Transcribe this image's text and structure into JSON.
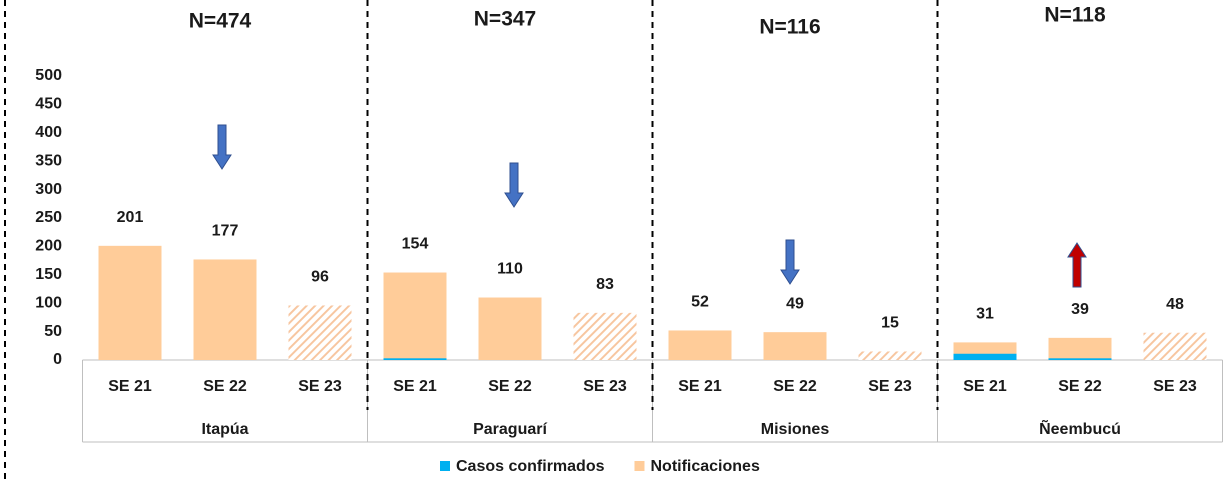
{
  "chart_data": {
    "type": "bar",
    "groups": [
      {
        "name": "Itapúa",
        "n_label": "N=474"
      },
      {
        "name": "Paraguarí",
        "n_label": "N=347"
      },
      {
        "name": "Misiones",
        "n_label": "N=116"
      },
      {
        "name": "Ñeembucú",
        "n_label": "N=118"
      }
    ],
    "categories": [
      "SE 21",
      "SE 22",
      "SE 23",
      "SE 21",
      "SE 22",
      "SE 23",
      "SE 21",
      "SE 22",
      "SE 23",
      "SE 21",
      "SE 22",
      "SE 23"
    ],
    "series": [
      {
        "name": "Notificaciones",
        "color": "#ffcc99",
        "values": [
          201,
          177,
          96,
          154,
          110,
          83,
          52,
          49,
          15,
          31,
          39,
          48
        ],
        "hatched": [
          false,
          false,
          true,
          false,
          false,
          true,
          false,
          false,
          true,
          false,
          false,
          true
        ]
      },
      {
        "name": "Casos confirmados",
        "color": "#00b0f0",
        "values": [
          0,
          0,
          0,
          3,
          0,
          0,
          0,
          0,
          0,
          11,
          3,
          0
        ]
      }
    ],
    "label_series": 0,
    "arrows": [
      {
        "direction": "down",
        "color": "#4472c4"
      },
      {
        "direction": "down",
        "color": "#4472c4"
      },
      {
        "direction": "down",
        "color": "#4472c4"
      },
      {
        "direction": "up",
        "color": "#c00000"
      }
    ],
    "ylim": [
      0,
      500
    ],
    "yticks": [
      0,
      50,
      100,
      150,
      200,
      250,
      300,
      350,
      400,
      450,
      500
    ]
  }
}
